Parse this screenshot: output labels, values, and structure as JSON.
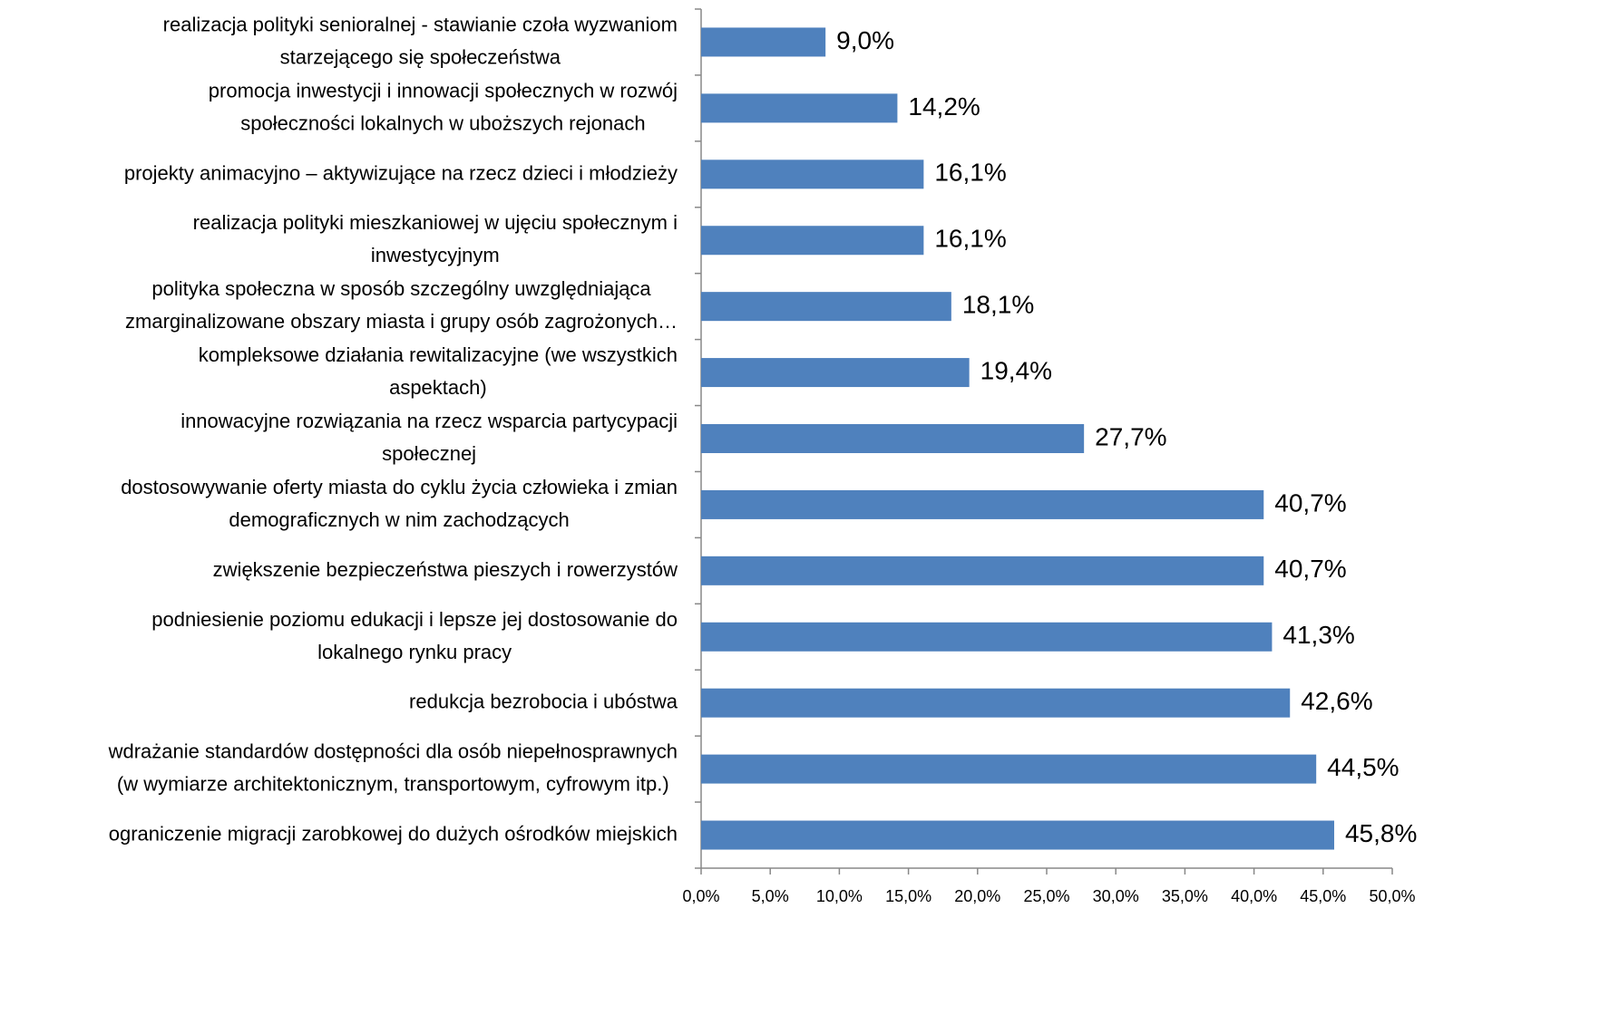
{
  "chart_data": {
    "type": "bar",
    "orientation": "horizontal",
    "categories": [
      "realizacja polityki senioralnej - stawianie czoła wyzwaniom\nstarzejącego się społeczeństwa",
      "promocja inwestycji i innowacji społecznych w rozwój\nspołeczności lokalnych w uboższych rejonach",
      "projekty animacyjno – aktywizujące na rzecz dzieci i młodzieży",
      "realizacja polityki mieszkaniowej w ujęciu społecznym i\ninwestycyjnym",
      "polityka społeczna w sposób szczególny uwzględniająca\nzmarginalizowane obszary miasta i grupy osób zagrożonych…",
      "kompleksowe działania rewitalizacyjne (we wszystkich\naspektach)",
      "innowacyjne rozwiązania na rzecz wsparcia partycypacji\nspołecznej",
      "dostosowywanie oferty miasta do cyklu życia człowieka i zmian\ndemograficznych w nim zachodzących",
      "zwiększenie bezpieczeństwa pieszych i rowerzystów",
      "podniesienie poziomu edukacji i lepsze jej dostosowanie do\nlokalnego rynku pracy",
      "redukcja bezrobocia i ubóstwa",
      "wdrażanie standardów dostępności dla osób niepełnosprawnych\n(w wymiarze architektonicznym, transportowym, cyfrowym itp.)",
      "ograniczenie migracji zarobkowej do dużych ośrodków miejskich"
    ],
    "values": [
      9.0,
      14.2,
      16.1,
      16.1,
      18.1,
      19.4,
      27.7,
      40.7,
      40.7,
      41.3,
      42.6,
      44.5,
      45.8
    ],
    "value_labels": [
      "9,0%",
      "14,2%",
      "16,1%",
      "16,1%",
      "18,1%",
      "19,4%",
      "27,7%",
      "40,7%",
      "40,7%",
      "41,3%",
      "42,6%",
      "44,5%",
      "45,8%"
    ],
    "color": "#4f81bd",
    "xlim": [
      0,
      50
    ],
    "xticks": [
      {
        "value": 0,
        "label": "0,0%"
      },
      {
        "value": 5,
        "label": "5,0%"
      },
      {
        "value": 10,
        "label": "10,0%"
      },
      {
        "value": 15,
        "label": "15,0%"
      },
      {
        "value": 20,
        "label": "20,0%"
      },
      {
        "value": 25,
        "label": "25,0%"
      },
      {
        "value": 30,
        "label": "30,0%"
      },
      {
        "value": 35,
        "label": "35,0%"
      },
      {
        "value": 40,
        "label": "40,0%"
      },
      {
        "value": 45,
        "label": "45,0%"
      },
      {
        "value": 50,
        "label": "50,0%"
      }
    ],
    "grid": false
  }
}
